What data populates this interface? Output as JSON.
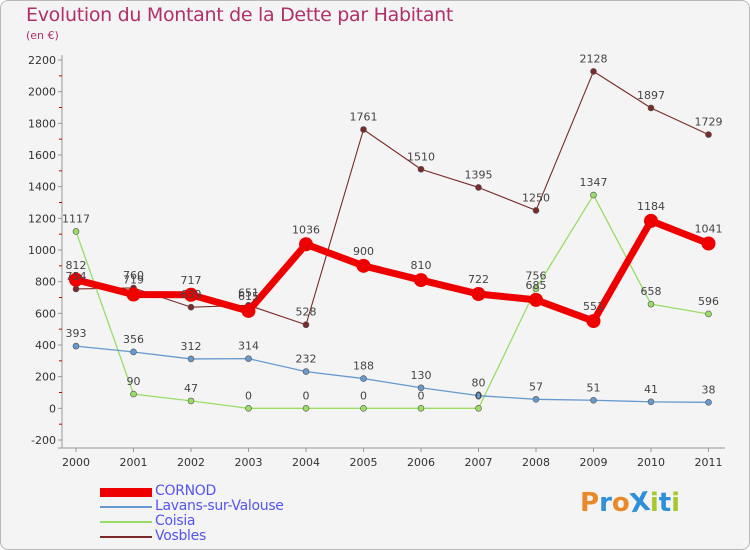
{
  "title": "Evolution du Montant de la Dette par Habitant",
  "subtitle": "(en €)",
  "logo_text": "ProXiti",
  "logo_colors": [
    "#e8892a",
    "#2f8fd8",
    "#e8892a",
    "#2f8fd8",
    "#a8c832",
    "#2f8fd8",
    "#a8c832"
  ],
  "chart_data": {
    "type": "line",
    "title": "Evolution du Montant de la Dette par Habitant",
    "ylabel": "(en €)",
    "xlabel": "",
    "ylim": [
      -200,
      2200
    ],
    "yticks": [
      -200,
      0,
      200,
      400,
      600,
      800,
      1000,
      1200,
      1400,
      1600,
      1800,
      2000,
      2200
    ],
    "categories": [
      "2000",
      "2001",
      "2002",
      "2003",
      "2004",
      "2005",
      "2006",
      "2007",
      "2008",
      "2009",
      "2010",
      "2011"
    ],
    "series": [
      {
        "name": "CORNOD",
        "color": "#ee0000",
        "width": 7,
        "marker": 7,
        "values": [
          812,
          719,
          717,
          615,
          1036,
          900,
          810,
          722,
          685,
          551,
          1184,
          1041
        ],
        "labels": [
          "812",
          "719",
          "717",
          "615",
          "1036",
          "900",
          "810",
          "722",
          "685",
          "551",
          "1184",
          "1041"
        ]
      },
      {
        "name": "Lavans-sur-Valouse",
        "color": "#6699cc",
        "width": 1.3,
        "marker": 3,
        "values": [
          393,
          356,
          312,
          314,
          232,
          188,
          130,
          80,
          57,
          51,
          41,
          38
        ],
        "labels": [
          "393",
          "356",
          "312",
          "314",
          "232",
          "188",
          "130",
          "80",
          "57",
          "51",
          "41",
          "38"
        ]
      },
      {
        "name": "Coisia",
        "color": "#99dd66",
        "width": 1.3,
        "marker": 3,
        "values": [
          1117,
          90,
          47,
          0,
          0,
          0,
          0,
          0,
          756,
          1347,
          658,
          596
        ],
        "labels": [
          "1117",
          "90",
          "47",
          "0",
          "0",
          "0",
          "0",
          "0",
          "756",
          "1347",
          "658",
          "596"
        ]
      },
      {
        "name": "Vosbles",
        "color": "#7a2a2a",
        "width": 1.1,
        "marker": 3,
        "values": [
          754,
          760,
          639,
          651,
          528,
          1761,
          1510,
          1395,
          1250,
          2128,
          1897,
          1729
        ],
        "labels": [
          "754",
          "760",
          "639",
          "651",
          "528",
          "1761",
          "1510",
          "1395",
          "1250",
          "2128",
          "1897",
          "1729"
        ]
      }
    ],
    "legend": "bottom-left",
    "grid": false
  }
}
